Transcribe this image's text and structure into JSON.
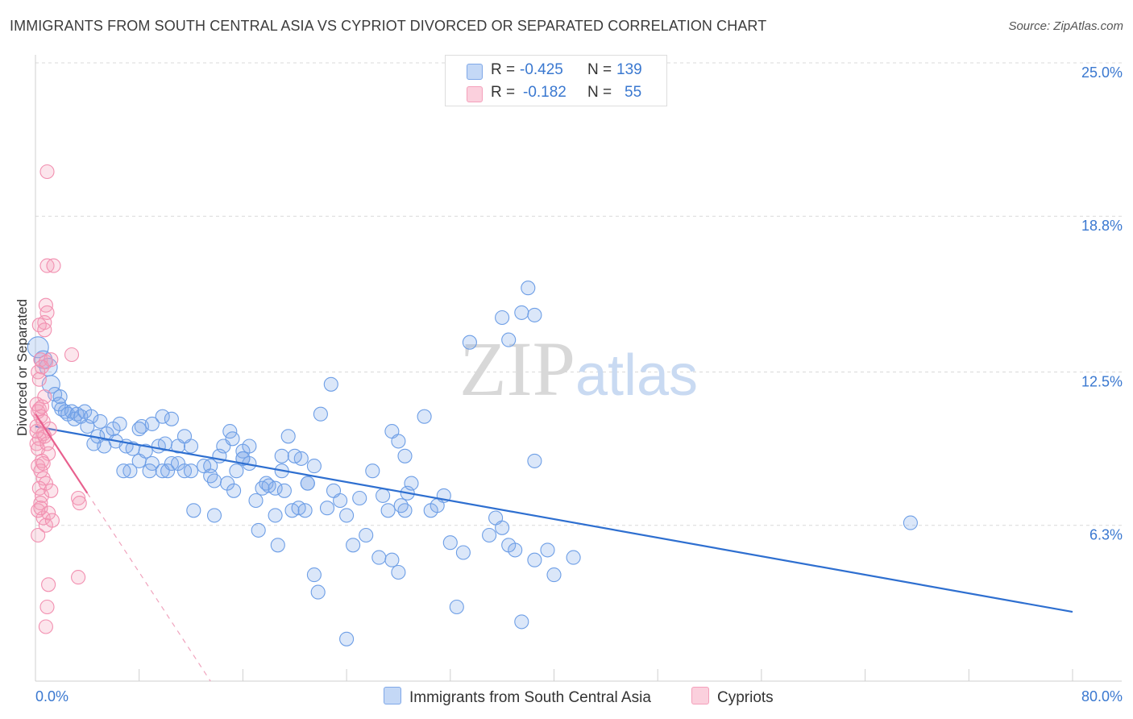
{
  "title": "IMMIGRANTS FROM SOUTH CENTRAL ASIA VS CYPRIOT DIVORCED OR SEPARATED CORRELATION CHART",
  "source": "Source: ZipAtlas.com",
  "watermark": "ZIPatlas",
  "stats": [
    {
      "r_label": "R =",
      "r": "-0.425",
      "n_label": "N =",
      "n": "139",
      "color": "#7fa8e8"
    },
    {
      "r_label": "R =",
      "r": "-0.182",
      "n_label": "N =",
      "n": "55",
      "color": "#f4a0bb"
    }
  ],
  "legend": [
    {
      "label": "Immigrants from South Central Asia",
      "color": "#7fa8e8"
    },
    {
      "label": "Cypriots",
      "color": "#f4a0bb"
    }
  ],
  "chart_data": {
    "type": "scatter",
    "title": "IMMIGRANTS FROM SOUTH CENTRAL ASIA VS CYPRIOT DIVORCED OR SEPARATED CORRELATION CHART",
    "xlabel": "",
    "ylabel": "Divorced or Separated",
    "xlim": [
      0,
      80
    ],
    "ylim": [
      0,
      25
    ],
    "x_tick_labels": [
      "0.0%",
      "80.0%"
    ],
    "y_ticks": [
      6.3,
      12.5,
      18.8,
      25.0
    ],
    "y_tick_labels": [
      "6.3%",
      "12.5%",
      "18.8%",
      "25.0%"
    ],
    "grid": "horizontal dashed",
    "series": [
      {
        "name": "Immigrants from South Central Asia",
        "color": "#6d9ee6",
        "trend": [
          [
            0,
            10.3
          ],
          [
            80,
            2.8
          ]
        ],
        "points": [
          [
            0.2,
            13.5
          ],
          [
            0.6,
            13.0
          ],
          [
            1.0,
            12.7
          ],
          [
            1.2,
            12.0
          ],
          [
            1.5,
            11.6
          ],
          [
            1.9,
            11.5
          ],
          [
            1.8,
            11.2
          ],
          [
            2.0,
            11.0
          ],
          [
            2.3,
            10.9
          ],
          [
            2.5,
            10.8
          ],
          [
            2.8,
            10.9
          ],
          [
            3.0,
            10.6
          ],
          [
            3.2,
            10.8
          ],
          [
            3.5,
            10.7
          ],
          [
            3.8,
            10.9
          ],
          [
            4.0,
            10.3
          ],
          [
            4.3,
            10.7
          ],
          [
            5.0,
            10.5
          ],
          [
            5.5,
            10.0
          ],
          [
            6.0,
            10.2
          ],
          [
            6.5,
            10.4
          ],
          [
            4.8,
            9.9
          ],
          [
            5.3,
            9.5
          ],
          [
            4.5,
            9.6
          ],
          [
            6.2,
            9.7
          ],
          [
            7.0,
            9.5
          ],
          [
            7.5,
            9.4
          ],
          [
            7.3,
            8.5
          ],
          [
            8.0,
            8.9
          ],
          [
            8.5,
            9.3
          ],
          [
            8.2,
            10.3
          ],
          [
            9.0,
            10.4
          ],
          [
            9.8,
            10.7
          ],
          [
            10.5,
            10.6
          ],
          [
            9.5,
            9.5
          ],
          [
            9.0,
            8.8
          ],
          [
            8.8,
            8.5
          ],
          [
            9.8,
            8.5
          ],
          [
            10.2,
            8.5
          ],
          [
            10.5,
            8.8
          ],
          [
            11.0,
            8.8
          ],
          [
            11.5,
            8.5
          ],
          [
            12.0,
            8.5
          ],
          [
            11.0,
            9.5
          ],
          [
            12.0,
            9.5
          ],
          [
            11.5,
            9.9
          ],
          [
            13.0,
            8.7
          ],
          [
            13.5,
            8.7
          ],
          [
            13.5,
            8.3
          ],
          [
            13.8,
            8.1
          ],
          [
            14.2,
            9.1
          ],
          [
            14.8,
            8.0
          ],
          [
            14.5,
            9.5
          ],
          [
            13.8,
            6.7
          ],
          [
            15.0,
            10.1
          ],
          [
            15.2,
            9.8
          ],
          [
            16.0,
            9.3
          ],
          [
            16.5,
            9.5
          ],
          [
            16.0,
            9.0
          ],
          [
            15.5,
            8.5
          ],
          [
            15.3,
            7.7
          ],
          [
            16.5,
            8.8
          ],
          [
            16.0,
            9.0
          ],
          [
            17.0,
            7.3
          ],
          [
            17.2,
            6.1
          ],
          [
            17.5,
            7.8
          ],
          [
            17.8,
            8.0
          ],
          [
            18.5,
            6.7
          ],
          [
            18.7,
            5.5
          ],
          [
            18.5,
            7.8
          ],
          [
            18.0,
            7.9
          ],
          [
            19.0,
            8.5
          ],
          [
            19.0,
            9.1
          ],
          [
            19.2,
            7.7
          ],
          [
            19.5,
            9.9
          ],
          [
            19.8,
            6.9
          ],
          [
            20.3,
            7.0
          ],
          [
            20.5,
            9.0
          ],
          [
            20.8,
            6.9
          ],
          [
            21.0,
            8.0
          ],
          [
            21.5,
            8.7
          ],
          [
            21.5,
            4.3
          ],
          [
            21.0,
            8.0
          ],
          [
            20.0,
            9.1
          ],
          [
            21.8,
            3.6
          ],
          [
            22.5,
            7.0
          ],
          [
            22.0,
            10.8
          ],
          [
            22.8,
            12.0
          ],
          [
            23.0,
            7.7
          ],
          [
            23.5,
            7.3
          ],
          [
            24.0,
            6.7
          ],
          [
            24.5,
            5.5
          ],
          [
            24.0,
            1.7
          ],
          [
            25.0,
            7.4
          ],
          [
            25.5,
            5.9
          ],
          [
            26.0,
            8.5
          ],
          [
            26.5,
            5.0
          ],
          [
            26.8,
            7.5
          ],
          [
            27.2,
            6.9
          ],
          [
            27.5,
            4.9
          ],
          [
            28.0,
            4.4
          ],
          [
            28.5,
            6.9
          ],
          [
            28.2,
            7.1
          ],
          [
            28.7,
            7.6
          ],
          [
            29.0,
            8.0
          ],
          [
            27.5,
            10.1
          ],
          [
            28.0,
            9.7
          ],
          [
            28.5,
            9.1
          ],
          [
            30.5,
            6.9
          ],
          [
            31.0,
            7.1
          ],
          [
            30.0,
            10.7
          ],
          [
            32.0,
            5.6
          ],
          [
            32.5,
            3.0
          ],
          [
            31.5,
            7.5
          ],
          [
            33.0,
            5.2
          ],
          [
            33.5,
            13.7
          ],
          [
            35.0,
            5.9
          ],
          [
            35.5,
            6.6
          ],
          [
            36.0,
            6.2
          ],
          [
            36.0,
            14.7
          ],
          [
            36.5,
            5.5
          ],
          [
            37.0,
            5.3
          ],
          [
            36.5,
            13.8
          ],
          [
            37.5,
            14.9
          ],
          [
            38.5,
            14.8
          ],
          [
            38.0,
            15.9
          ],
          [
            38.5,
            8.9
          ],
          [
            38.5,
            4.9
          ],
          [
            39.5,
            5.3
          ],
          [
            40.0,
            4.3
          ],
          [
            41.5,
            5.0
          ],
          [
            67.5,
            6.4
          ],
          [
            37.5,
            2.4
          ],
          [
            10.0,
            9.6
          ],
          [
            6.8,
            8.5
          ],
          [
            12.2,
            6.9
          ],
          [
            8.0,
            10.2
          ]
        ]
      },
      {
        "name": "Cypriots",
        "color": "#f28fb0",
        "trend": [
          [
            0,
            10.8
          ],
          [
            4,
            7.6
          ]
        ],
        "trend_extended": [
          [
            4,
            7.6
          ],
          [
            13.5,
            0
          ]
        ],
        "points": [
          [
            0.9,
            20.6
          ],
          [
            0.9,
            16.8
          ],
          [
            1.4,
            16.8
          ],
          [
            0.8,
            15.2
          ],
          [
            0.9,
            14.9
          ],
          [
            0.7,
            14.5
          ],
          [
            0.3,
            14.4
          ],
          [
            0.7,
            14.2
          ],
          [
            2.8,
            13.2
          ],
          [
            0.4,
            13.0
          ],
          [
            0.8,
            12.9
          ],
          [
            1.2,
            13.0
          ],
          [
            0.5,
            12.7
          ],
          [
            0.2,
            12.5
          ],
          [
            0.7,
            11.5
          ],
          [
            0.1,
            11.2
          ],
          [
            0.3,
            11.0
          ],
          [
            0.2,
            10.9
          ],
          [
            0.4,
            10.7
          ],
          [
            0.6,
            10.5
          ],
          [
            0.1,
            10.3
          ],
          [
            0.6,
            10.0
          ],
          [
            0.3,
            9.8
          ],
          [
            0.1,
            9.6
          ],
          [
            0.7,
            9.9
          ],
          [
            1.0,
            9.2
          ],
          [
            0.5,
            8.9
          ],
          [
            0.2,
            8.7
          ],
          [
            0.4,
            8.5
          ],
          [
            0.6,
            8.2
          ],
          [
            0.8,
            8.0
          ],
          [
            0.3,
            7.8
          ],
          [
            0.5,
            7.5
          ],
          [
            0.4,
            7.2
          ],
          [
            0.2,
            6.9
          ],
          [
            0.6,
            6.6
          ],
          [
            0.8,
            6.3
          ],
          [
            1.0,
            6.8
          ],
          [
            1.3,
            6.5
          ],
          [
            3.3,
            7.4
          ],
          [
            3.4,
            7.2
          ],
          [
            3.3,
            4.2
          ],
          [
            1.0,
            3.9
          ],
          [
            0.9,
            3.0
          ],
          [
            0.8,
            2.2
          ],
          [
            0.1,
            10.1
          ],
          [
            0.2,
            9.4
          ],
          [
            0.5,
            11.1
          ],
          [
            0.3,
            12.2
          ],
          [
            0.6,
            8.8
          ],
          [
            0.4,
            7.0
          ],
          [
            1.1,
            10.2
          ],
          [
            0.9,
            9.6
          ],
          [
            1.2,
            7.7
          ],
          [
            0.2,
            5.9
          ]
        ]
      }
    ]
  }
}
